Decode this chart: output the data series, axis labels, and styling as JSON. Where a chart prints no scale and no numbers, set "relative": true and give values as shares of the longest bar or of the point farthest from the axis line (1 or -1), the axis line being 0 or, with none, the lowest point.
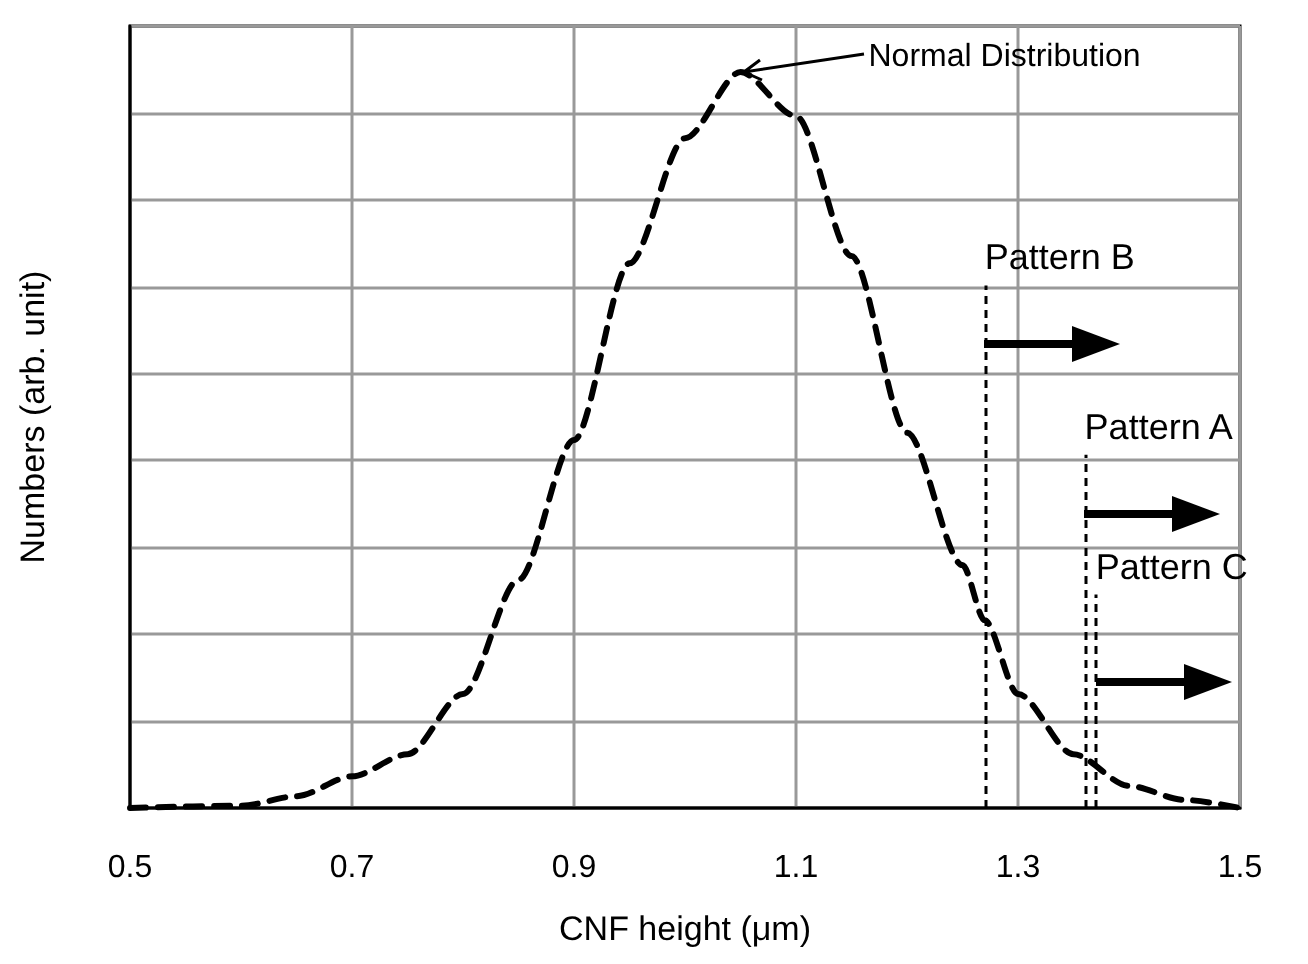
{
  "chart_data": {
    "type": "line",
    "relative": true,
    "xlabel": "CNF height (μm)",
    "ylabel": "Numbers (arb. unit)",
    "x": [
      0.5,
      0.6,
      0.65,
      0.7,
      0.75,
      0.8,
      0.85,
      0.9,
      0.95,
      1.0,
      1.05,
      1.1,
      1.15,
      1.2,
      1.25,
      1.27,
      1.3,
      1.35,
      1.4,
      1.45,
      1.5
    ],
    "series": [
      {
        "color": "#000000",
        "values": [
          0,
          0.003,
          0.016,
          0.043,
          0.073,
          0.155,
          0.31,
          0.5,
          0.74,
          0.91,
          1,
          0.94,
          0.75,
          0.51,
          0.33,
          0.255,
          0.155,
          0.073,
          0.03,
          0.011,
          0
        ]
      }
    ],
    "xlim": [
      0.5,
      1.5
    ],
    "xticks": [
      0.5,
      0.7,
      0.9,
      1.1,
      1.3,
      1.5
    ],
    "grid": true,
    "marker": "none",
    "line_style": "dashed",
    "ref_lines": [
      {
        "axis": "x",
        "value": 1.27,
        "label": "Pattern B",
        "color": "#000000",
        "line_style": "dashed"
      },
      {
        "axis": "x",
        "value": 1.36,
        "label": "Pattern A",
        "color": "#000000",
        "line_style": "dashed"
      },
      {
        "axis": "x",
        "value": 1.37,
        "label": "Pattern C",
        "color": "#000000",
        "line_style": "dashed"
      }
    ],
    "annotations": [
      {
        "text": "Normal Distribution",
        "x": 1.05,
        "y": 1
      }
    ]
  }
}
